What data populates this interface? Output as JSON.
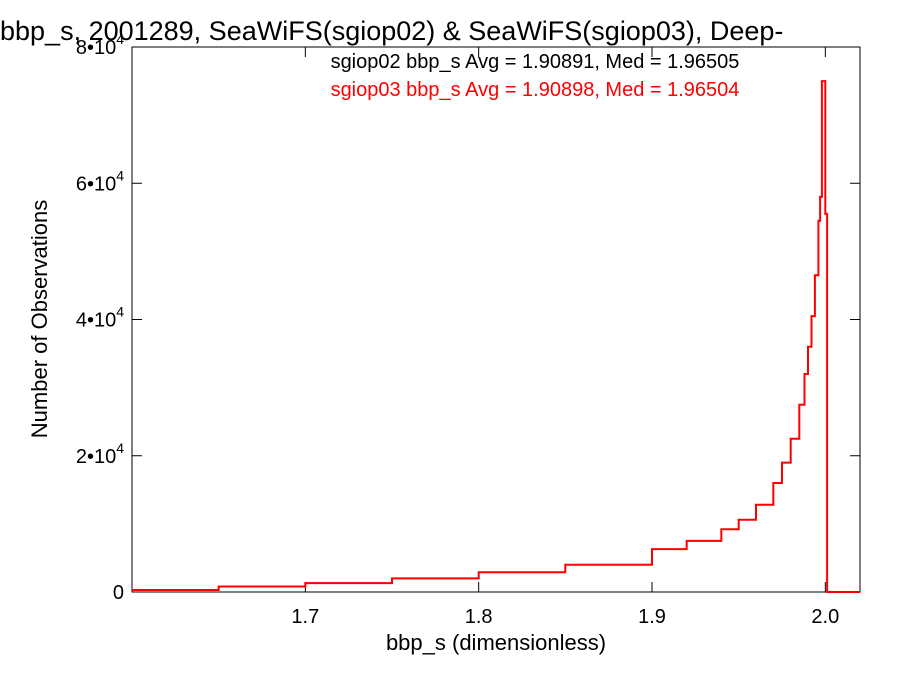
{
  "chart_data": {
    "type": "line",
    "title": "bbp_s, 2001289, SeaWiFS(sgiop02) & SeaWiFS(sgiop03), Deep-",
    "xlabel": "bbp_s (dimensionless)",
    "ylabel": "Number of Observations",
    "xlim": [
      1.6,
      2.02
    ],
    "ylim": [
      0,
      80000
    ],
    "xticks": [
      {
        "value": 1.7,
        "label": "1.7"
      },
      {
        "value": 1.8,
        "label": "1.8"
      },
      {
        "value": 1.9,
        "label": "1.9"
      },
      {
        "value": 2.0,
        "label": "2.0"
      }
    ],
    "yticks": [
      {
        "value": 0,
        "mantissa": "0",
        "exponent": ""
      },
      {
        "value": 20000,
        "mantissa": "2•10",
        "exponent": "4"
      },
      {
        "value": 40000,
        "mantissa": "4•10",
        "exponent": "4"
      },
      {
        "value": 60000,
        "mantissa": "6•10",
        "exponent": "4"
      },
      {
        "value": 80000,
        "mantissa": "8•10",
        "exponent": "4"
      }
    ],
    "annotations": [
      {
        "text": "sgiop02 bbp_s Avg = 1.90891, Med = 1.96505",
        "color": "#000000"
      },
      {
        "text": "sgiop03 bbp_s Avg = 1.90898, Med = 1.96504",
        "color": "#ff0000"
      }
    ],
    "series": [
      {
        "color": "#ff0000",
        "x": [
          1.6,
          1.65,
          1.7,
          1.75,
          1.8,
          1.85,
          1.9,
          1.92,
          1.94,
          1.95,
          1.96,
          1.97,
          1.975,
          1.98,
          1.985,
          1.988,
          1.99,
          1.992,
          1.994,
          1.996,
          1.997,
          1.998,
          1.999,
          2.0,
          2.001,
          2.002,
          2.005,
          2.01,
          2.02
        ],
        "y": [
          300,
          800,
          1300,
          2000,
          2900,
          4000,
          6300,
          7500,
          9200,
          10600,
          12800,
          16000,
          19000,
          22500,
          27500,
          32000,
          36000,
          40500,
          46500,
          54500,
          58000,
          75000,
          75000,
          55500,
          0,
          0,
          0,
          0,
          0
        ]
      }
    ]
  }
}
